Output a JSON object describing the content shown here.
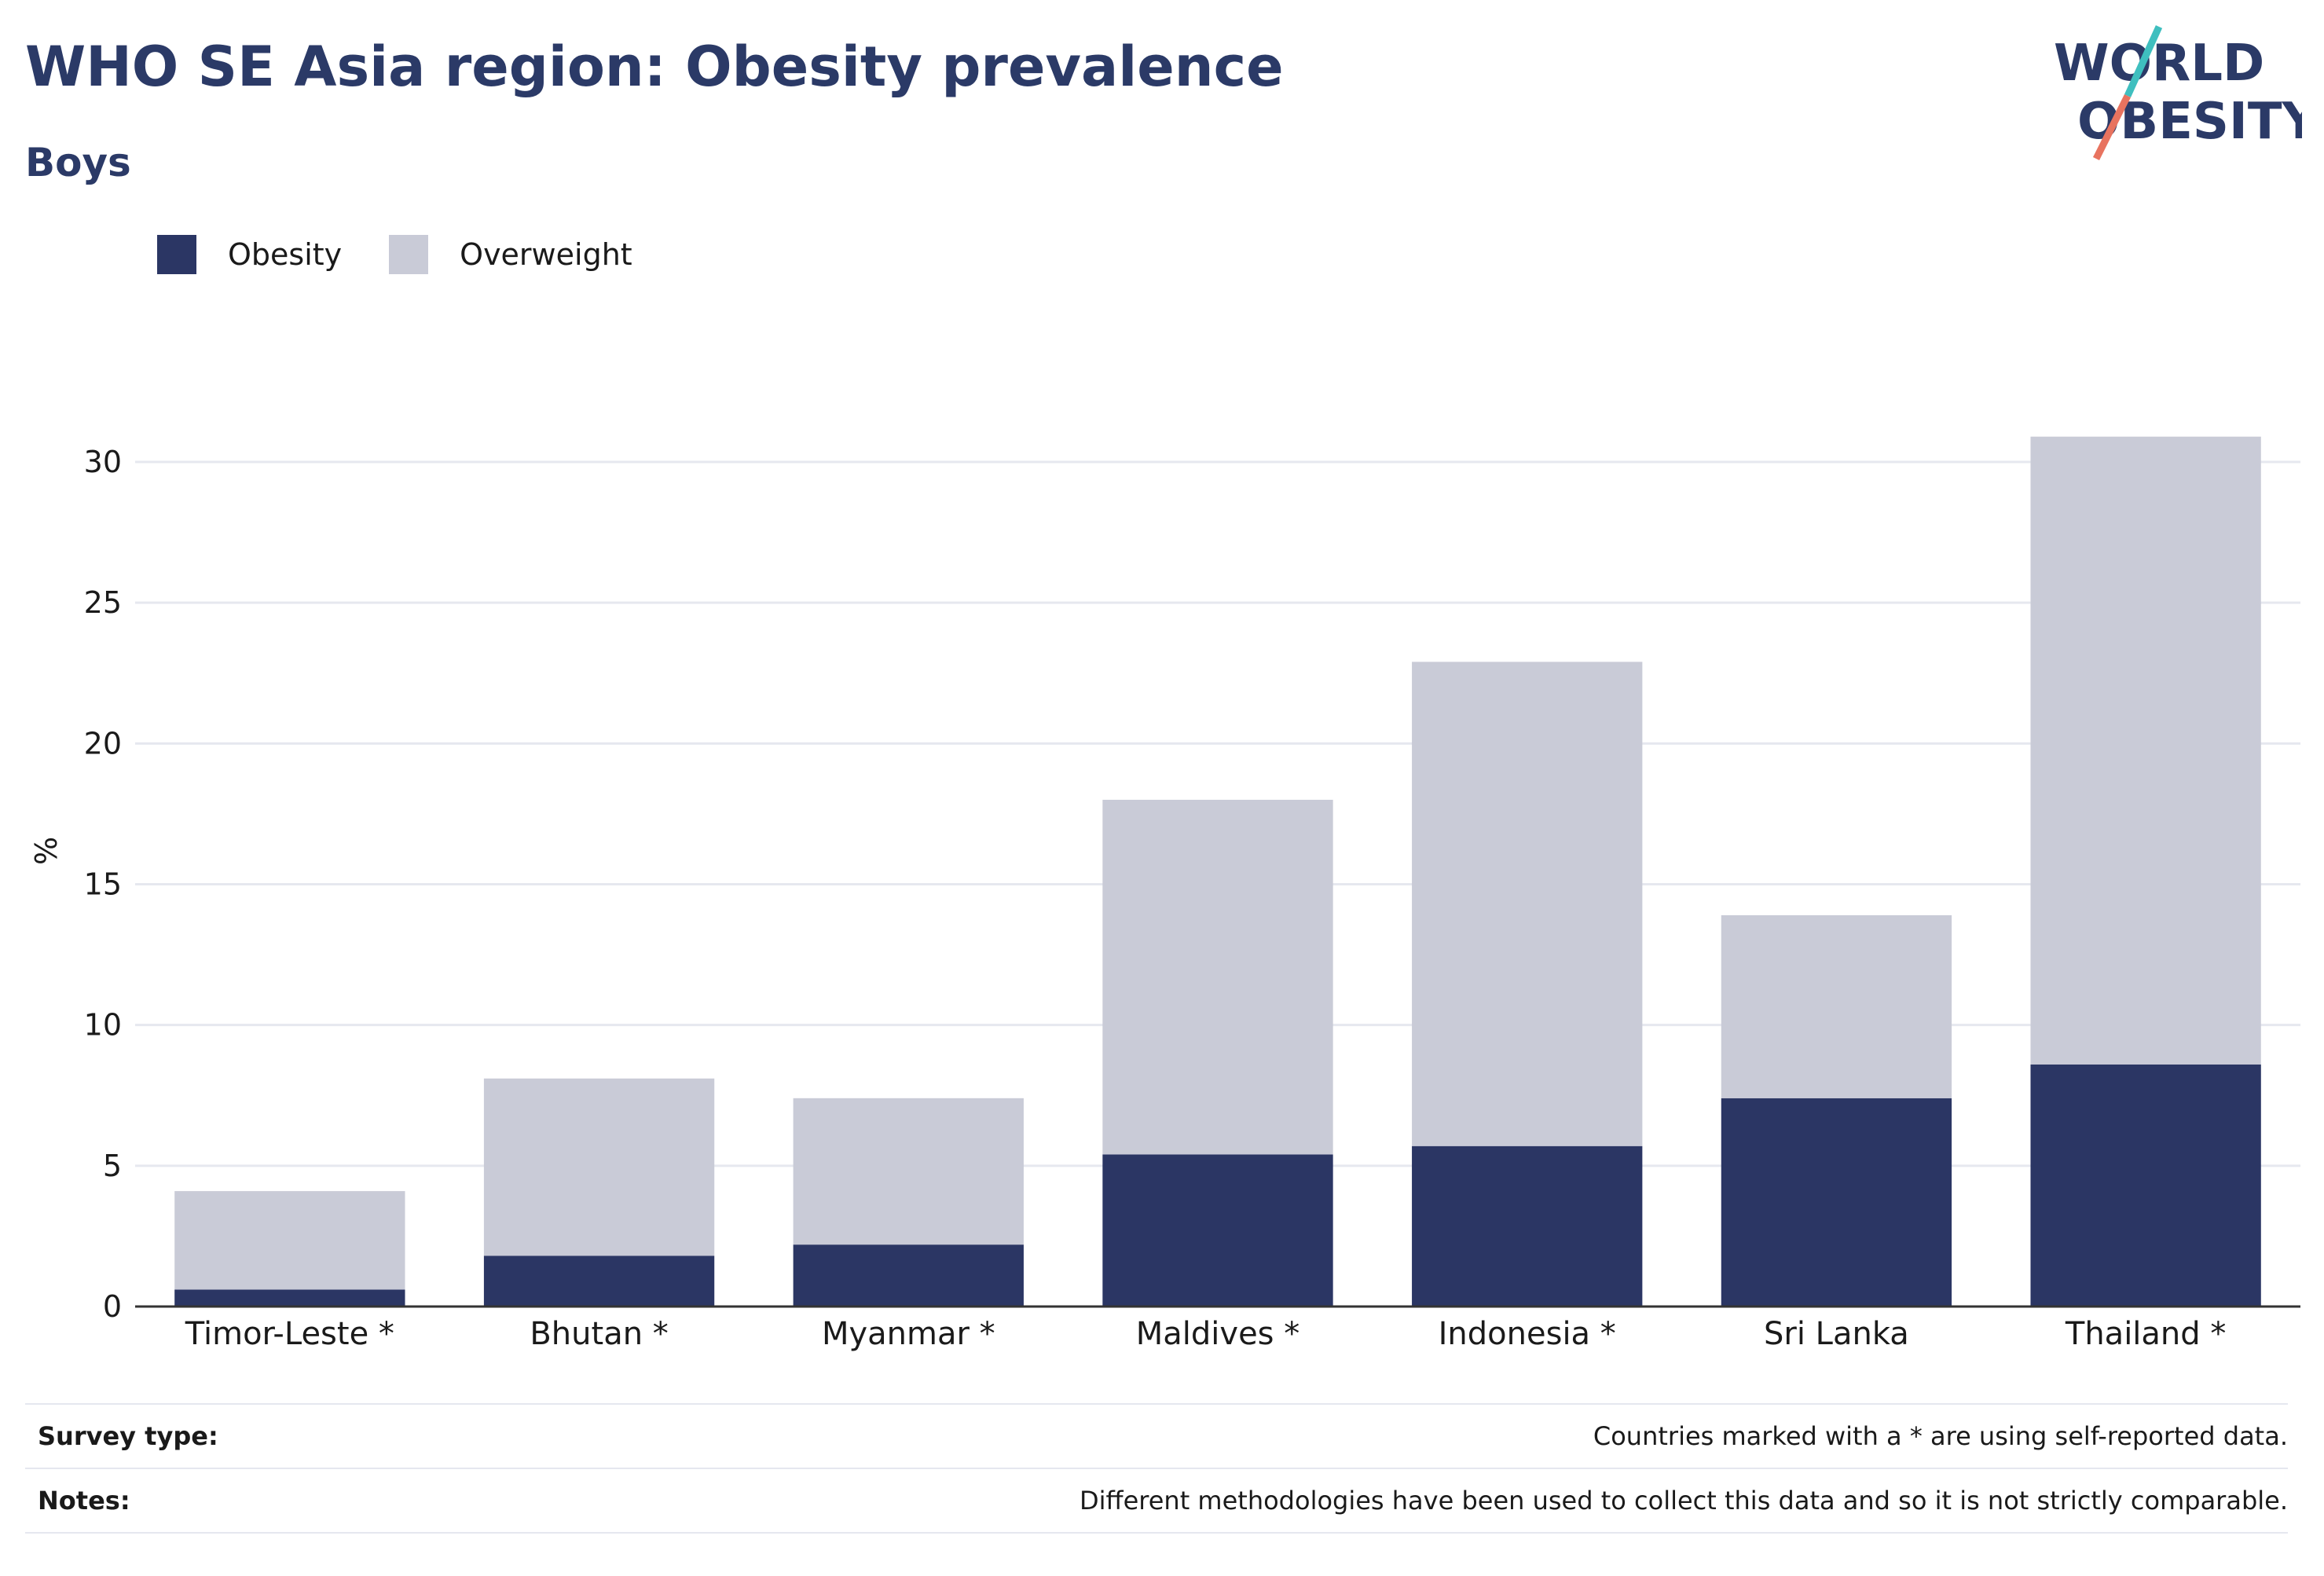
{
  "header": {
    "title": "WHO SE Asia region: Obesity prevalence",
    "subtitle": "Boys",
    "logo_line1": "WORLD",
    "logo_line2": "OBESITY"
  },
  "legend": {
    "items": [
      {
        "label": "Obesity",
        "color": "#2b3664"
      },
      {
        "label": "Overweight",
        "color": "#c9cbd7"
      }
    ]
  },
  "chart_data": {
    "type": "bar",
    "stacked": true,
    "categories": [
      "Timor-Leste *",
      "Bhutan *",
      "Myanmar *",
      "Maldives *",
      "Indonesia *",
      "Sri Lanka",
      "Thailand *"
    ],
    "series": [
      {
        "name": "Obesity",
        "values": [
          0.6,
          1.8,
          2.2,
          5.4,
          5.7,
          7.4,
          8.6
        ],
        "color": "#2b3664"
      },
      {
        "name": "Overweight",
        "values": [
          3.5,
          6.3,
          5.2,
          12.6,
          17.2,
          6.5,
          22.3
        ],
        "color": "#c9cbd7"
      }
    ],
    "ylabel": "%",
    "ylim": [
      0,
      32
    ],
    "yticks": [
      0,
      5,
      10,
      15,
      20,
      25,
      30
    ],
    "grid": true,
    "legend_position": "top-left"
  },
  "footer": {
    "survey_type_label": "Survey type:",
    "survey_type_value": "Countries marked with a * are using self-reported data.",
    "notes_label": "Notes:",
    "notes_value": "Different methodologies have been used to collect this data and so it is not strictly comparable."
  },
  "colors": {
    "title": "#2b3a67",
    "logo_teal": "#3fbfbf",
    "logo_coral": "#e8735f"
  }
}
